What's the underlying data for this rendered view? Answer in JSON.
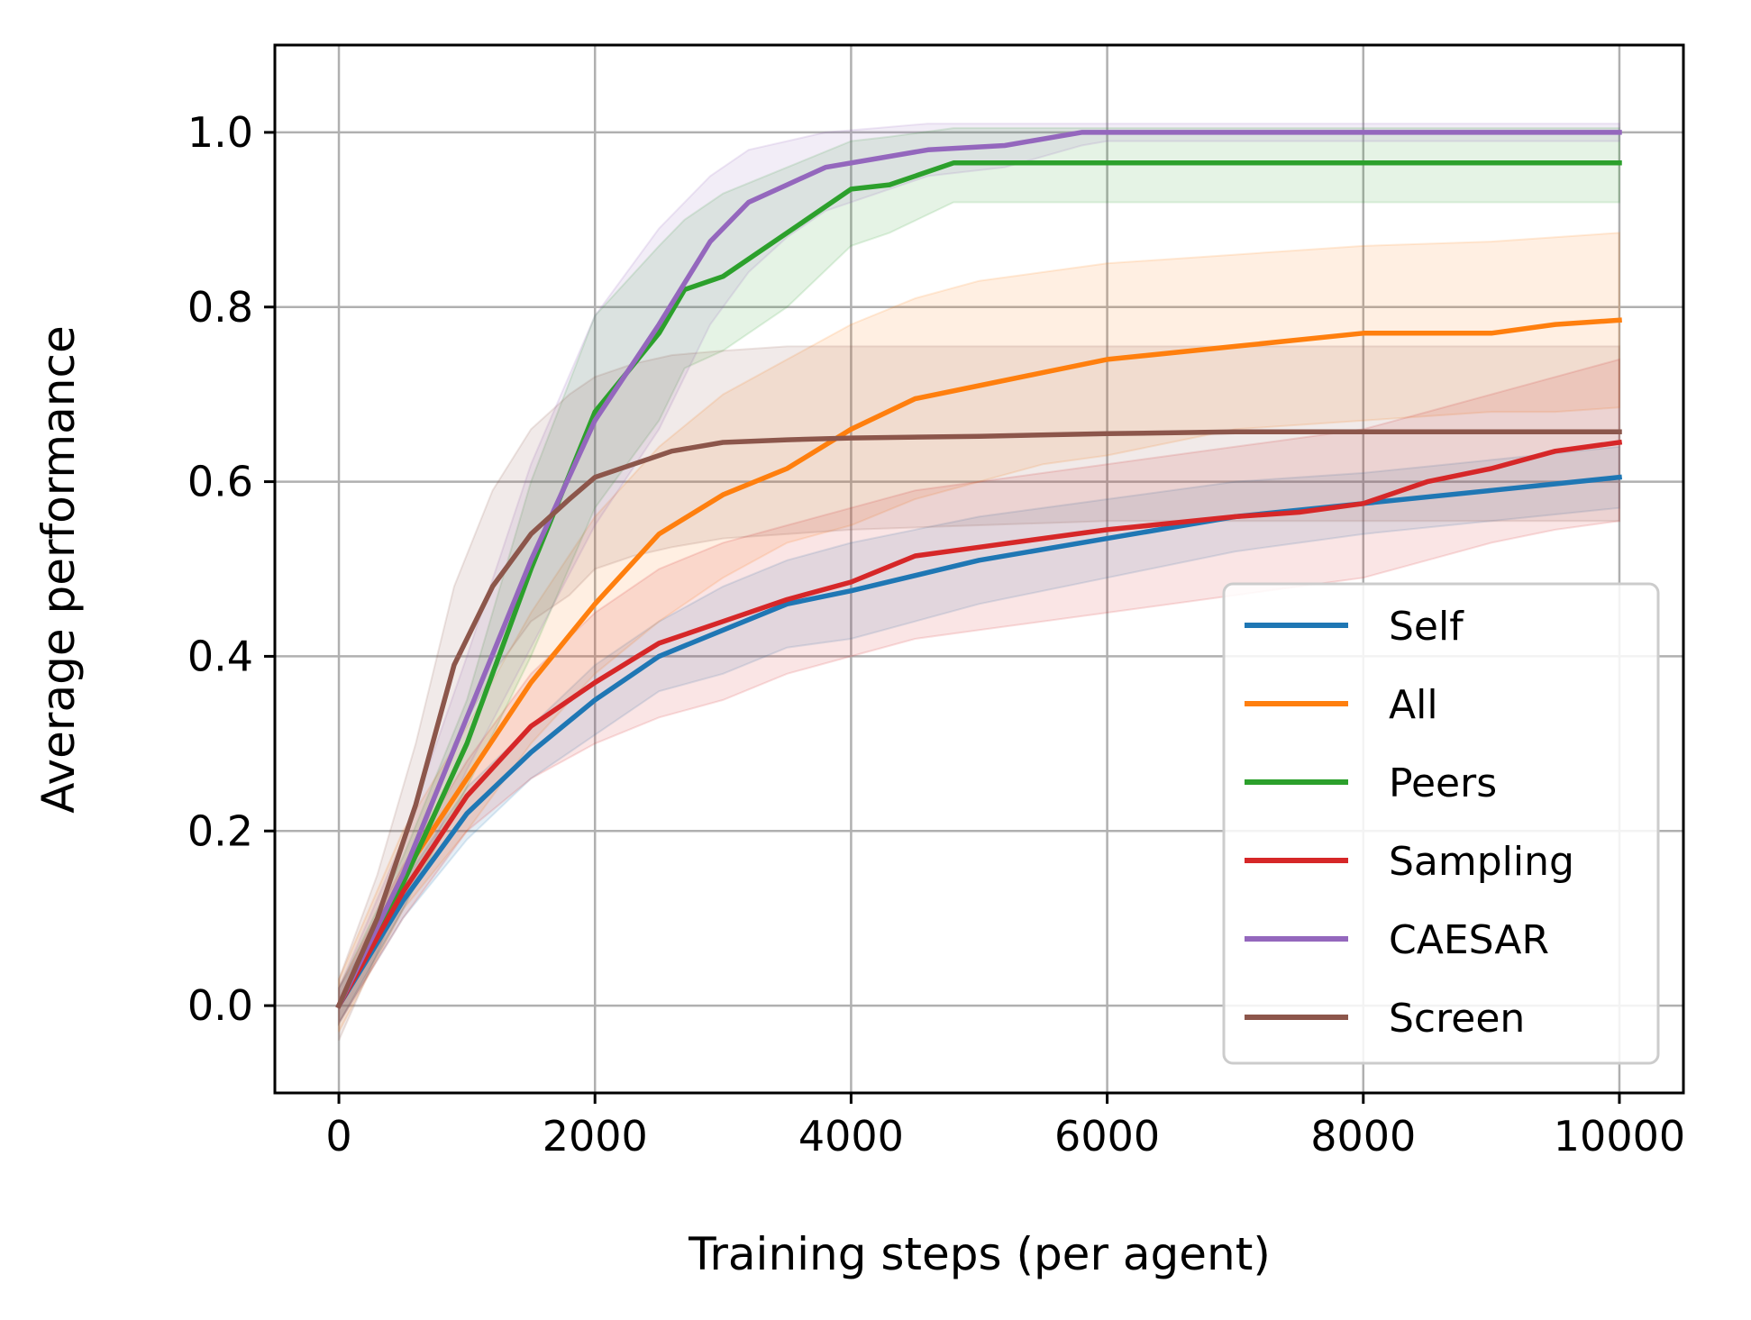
{
  "chart_data": {
    "type": "line",
    "xlabel": "Training steps (per agent)",
    "ylabel": "Average performance",
    "xlim": [
      -500,
      10500
    ],
    "ylim": [
      -0.1,
      1.1
    ],
    "xticks": [
      0,
      2000,
      4000,
      6000,
      8000,
      10000
    ],
    "xtick_labels": [
      "0",
      "2000",
      "4000",
      "6000",
      "8000",
      "10000"
    ],
    "yticks": [
      0.0,
      0.2,
      0.4,
      0.6,
      0.8,
      1.0
    ],
    "ytick_labels": [
      "0.0",
      "0.2",
      "0.4",
      "0.6",
      "0.8",
      "1.0"
    ],
    "grid": true,
    "legend_position": "lower-right",
    "series": [
      {
        "name": "Self",
        "color": "#1f77b4",
        "x": [
          0,
          500,
          1000,
          1500,
          2000,
          2500,
          3000,
          3500,
          4000,
          5000,
          6000,
          7000,
          8000,
          9000,
          10000
        ],
        "y": [
          0.0,
          0.12,
          0.22,
          0.29,
          0.35,
          0.4,
          0.43,
          0.46,
          0.475,
          0.51,
          0.535,
          0.56,
          0.575,
          0.59,
          0.605
        ],
        "upper": [
          0.02,
          0.14,
          0.25,
          0.32,
          0.39,
          0.44,
          0.48,
          0.51,
          0.53,
          0.56,
          0.58,
          0.6,
          0.61,
          0.625,
          0.64
        ],
        "lower": [
          -0.02,
          0.1,
          0.19,
          0.26,
          0.31,
          0.36,
          0.38,
          0.41,
          0.42,
          0.46,
          0.49,
          0.52,
          0.54,
          0.555,
          0.57
        ]
      },
      {
        "name": "All",
        "color": "#ff7f0e",
        "x": [
          0,
          500,
          1000,
          1500,
          2000,
          2500,
          3000,
          3500,
          4000,
          4500,
          5000,
          5500,
          6000,
          7000,
          8000,
          9000,
          9500,
          10000
        ],
        "y": [
          0.0,
          0.15,
          0.26,
          0.37,
          0.46,
          0.54,
          0.585,
          0.615,
          0.66,
          0.695,
          0.71,
          0.725,
          0.74,
          0.755,
          0.77,
          0.77,
          0.78,
          0.785
        ],
        "upper": [
          0.03,
          0.2,
          0.32,
          0.45,
          0.56,
          0.64,
          0.7,
          0.74,
          0.78,
          0.81,
          0.83,
          0.84,
          0.85,
          0.86,
          0.87,
          0.875,
          0.88,
          0.885
        ],
        "lower": [
          -0.03,
          0.11,
          0.2,
          0.3,
          0.38,
          0.44,
          0.49,
          0.53,
          0.55,
          0.58,
          0.6,
          0.62,
          0.63,
          0.66,
          0.67,
          0.68,
          0.68,
          0.685
        ]
      },
      {
        "name": "Peers",
        "color": "#2ca02c",
        "x": [
          0,
          500,
          1000,
          1500,
          2000,
          2500,
          2700,
          3000,
          3500,
          4000,
          4300,
          4800,
          5500,
          6000,
          7000,
          8000,
          9000,
          10000
        ],
        "y": [
          0.0,
          0.14,
          0.3,
          0.5,
          0.68,
          0.77,
          0.82,
          0.835,
          0.885,
          0.935,
          0.94,
          0.965,
          0.965,
          0.965,
          0.965,
          0.965,
          0.965,
          0.965
        ],
        "upper": [
          0.02,
          0.17,
          0.35,
          0.6,
          0.79,
          0.87,
          0.9,
          0.93,
          0.96,
          0.99,
          0.995,
          1.005,
          1.005,
          1.005,
          1.005,
          1.005,
          1.005,
          1.005
        ],
        "lower": [
          -0.02,
          0.11,
          0.25,
          0.4,
          0.57,
          0.67,
          0.73,
          0.75,
          0.8,
          0.87,
          0.885,
          0.92,
          0.92,
          0.92,
          0.92,
          0.92,
          0.92,
          0.92
        ]
      },
      {
        "name": "Sampling",
        "color": "#d62728",
        "x": [
          0,
          500,
          1000,
          1500,
          2000,
          2500,
          3000,
          3500,
          4000,
          4500,
          5000,
          6000,
          7000,
          7500,
          8000,
          8500,
          9000,
          9500,
          10000
        ],
        "y": [
          0.0,
          0.13,
          0.24,
          0.32,
          0.37,
          0.415,
          0.44,
          0.465,
          0.485,
          0.515,
          0.525,
          0.545,
          0.56,
          0.565,
          0.575,
          0.6,
          0.615,
          0.635,
          0.645
        ],
        "upper": [
          0.02,
          0.16,
          0.28,
          0.38,
          0.45,
          0.5,
          0.53,
          0.55,
          0.57,
          0.59,
          0.6,
          0.62,
          0.64,
          0.65,
          0.66,
          0.68,
          0.7,
          0.72,
          0.74
        ],
        "lower": [
          -0.02,
          0.1,
          0.2,
          0.26,
          0.3,
          0.33,
          0.35,
          0.38,
          0.4,
          0.42,
          0.43,
          0.45,
          0.47,
          0.48,
          0.49,
          0.51,
          0.53,
          0.545,
          0.555
        ]
      },
      {
        "name": "CAESAR",
        "color": "#9467bd",
        "x": [
          0,
          500,
          1000,
          1500,
          2000,
          2500,
          2900,
          3200,
          3500,
          3800,
          4200,
          4600,
          5200,
          5800,
          6000,
          7000,
          8000,
          9000,
          10000
        ],
        "y": [
          0.0,
          0.15,
          0.33,
          0.51,
          0.67,
          0.78,
          0.875,
          0.92,
          0.94,
          0.96,
          0.97,
          0.98,
          0.985,
          1.0,
          1.0,
          1.0,
          1.0,
          1.0,
          1.0
        ],
        "upper": [
          0.02,
          0.19,
          0.4,
          0.62,
          0.79,
          0.89,
          0.95,
          0.98,
          0.99,
          1.0,
          1.005,
          1.01,
          1.01,
          1.01,
          1.01,
          1.01,
          1.01,
          1.01,
          1.01
        ],
        "lower": [
          -0.02,
          0.11,
          0.27,
          0.41,
          0.55,
          0.66,
          0.78,
          0.84,
          0.88,
          0.91,
          0.93,
          0.95,
          0.96,
          0.985,
          0.99,
          0.99,
          0.99,
          0.99,
          0.99
        ]
      },
      {
        "name": "Screen",
        "color": "#8c564b",
        "x": [
          0,
          300,
          600,
          900,
          1200,
          1500,
          1800,
          2000,
          2300,
          2600,
          3000,
          3500,
          4000,
          5000,
          6000,
          7000,
          8000,
          9000,
          10000
        ],
        "y": [
          0.0,
          0.1,
          0.23,
          0.39,
          0.48,
          0.54,
          0.58,
          0.605,
          0.62,
          0.635,
          0.645,
          0.648,
          0.65,
          0.652,
          0.655,
          0.657,
          0.657,
          0.657,
          0.657
        ],
        "upper": [
          0.03,
          0.15,
          0.3,
          0.48,
          0.59,
          0.66,
          0.7,
          0.72,
          0.735,
          0.745,
          0.75,
          0.755,
          0.755,
          0.755,
          0.755,
          0.755,
          0.755,
          0.755,
          0.755
        ],
        "lower": [
          -0.04,
          0.06,
          0.17,
          0.3,
          0.38,
          0.44,
          0.47,
          0.5,
          0.515,
          0.525,
          0.535,
          0.54,
          0.545,
          0.55,
          0.555,
          0.555,
          0.555,
          0.555,
          0.555
        ]
      }
    ]
  }
}
